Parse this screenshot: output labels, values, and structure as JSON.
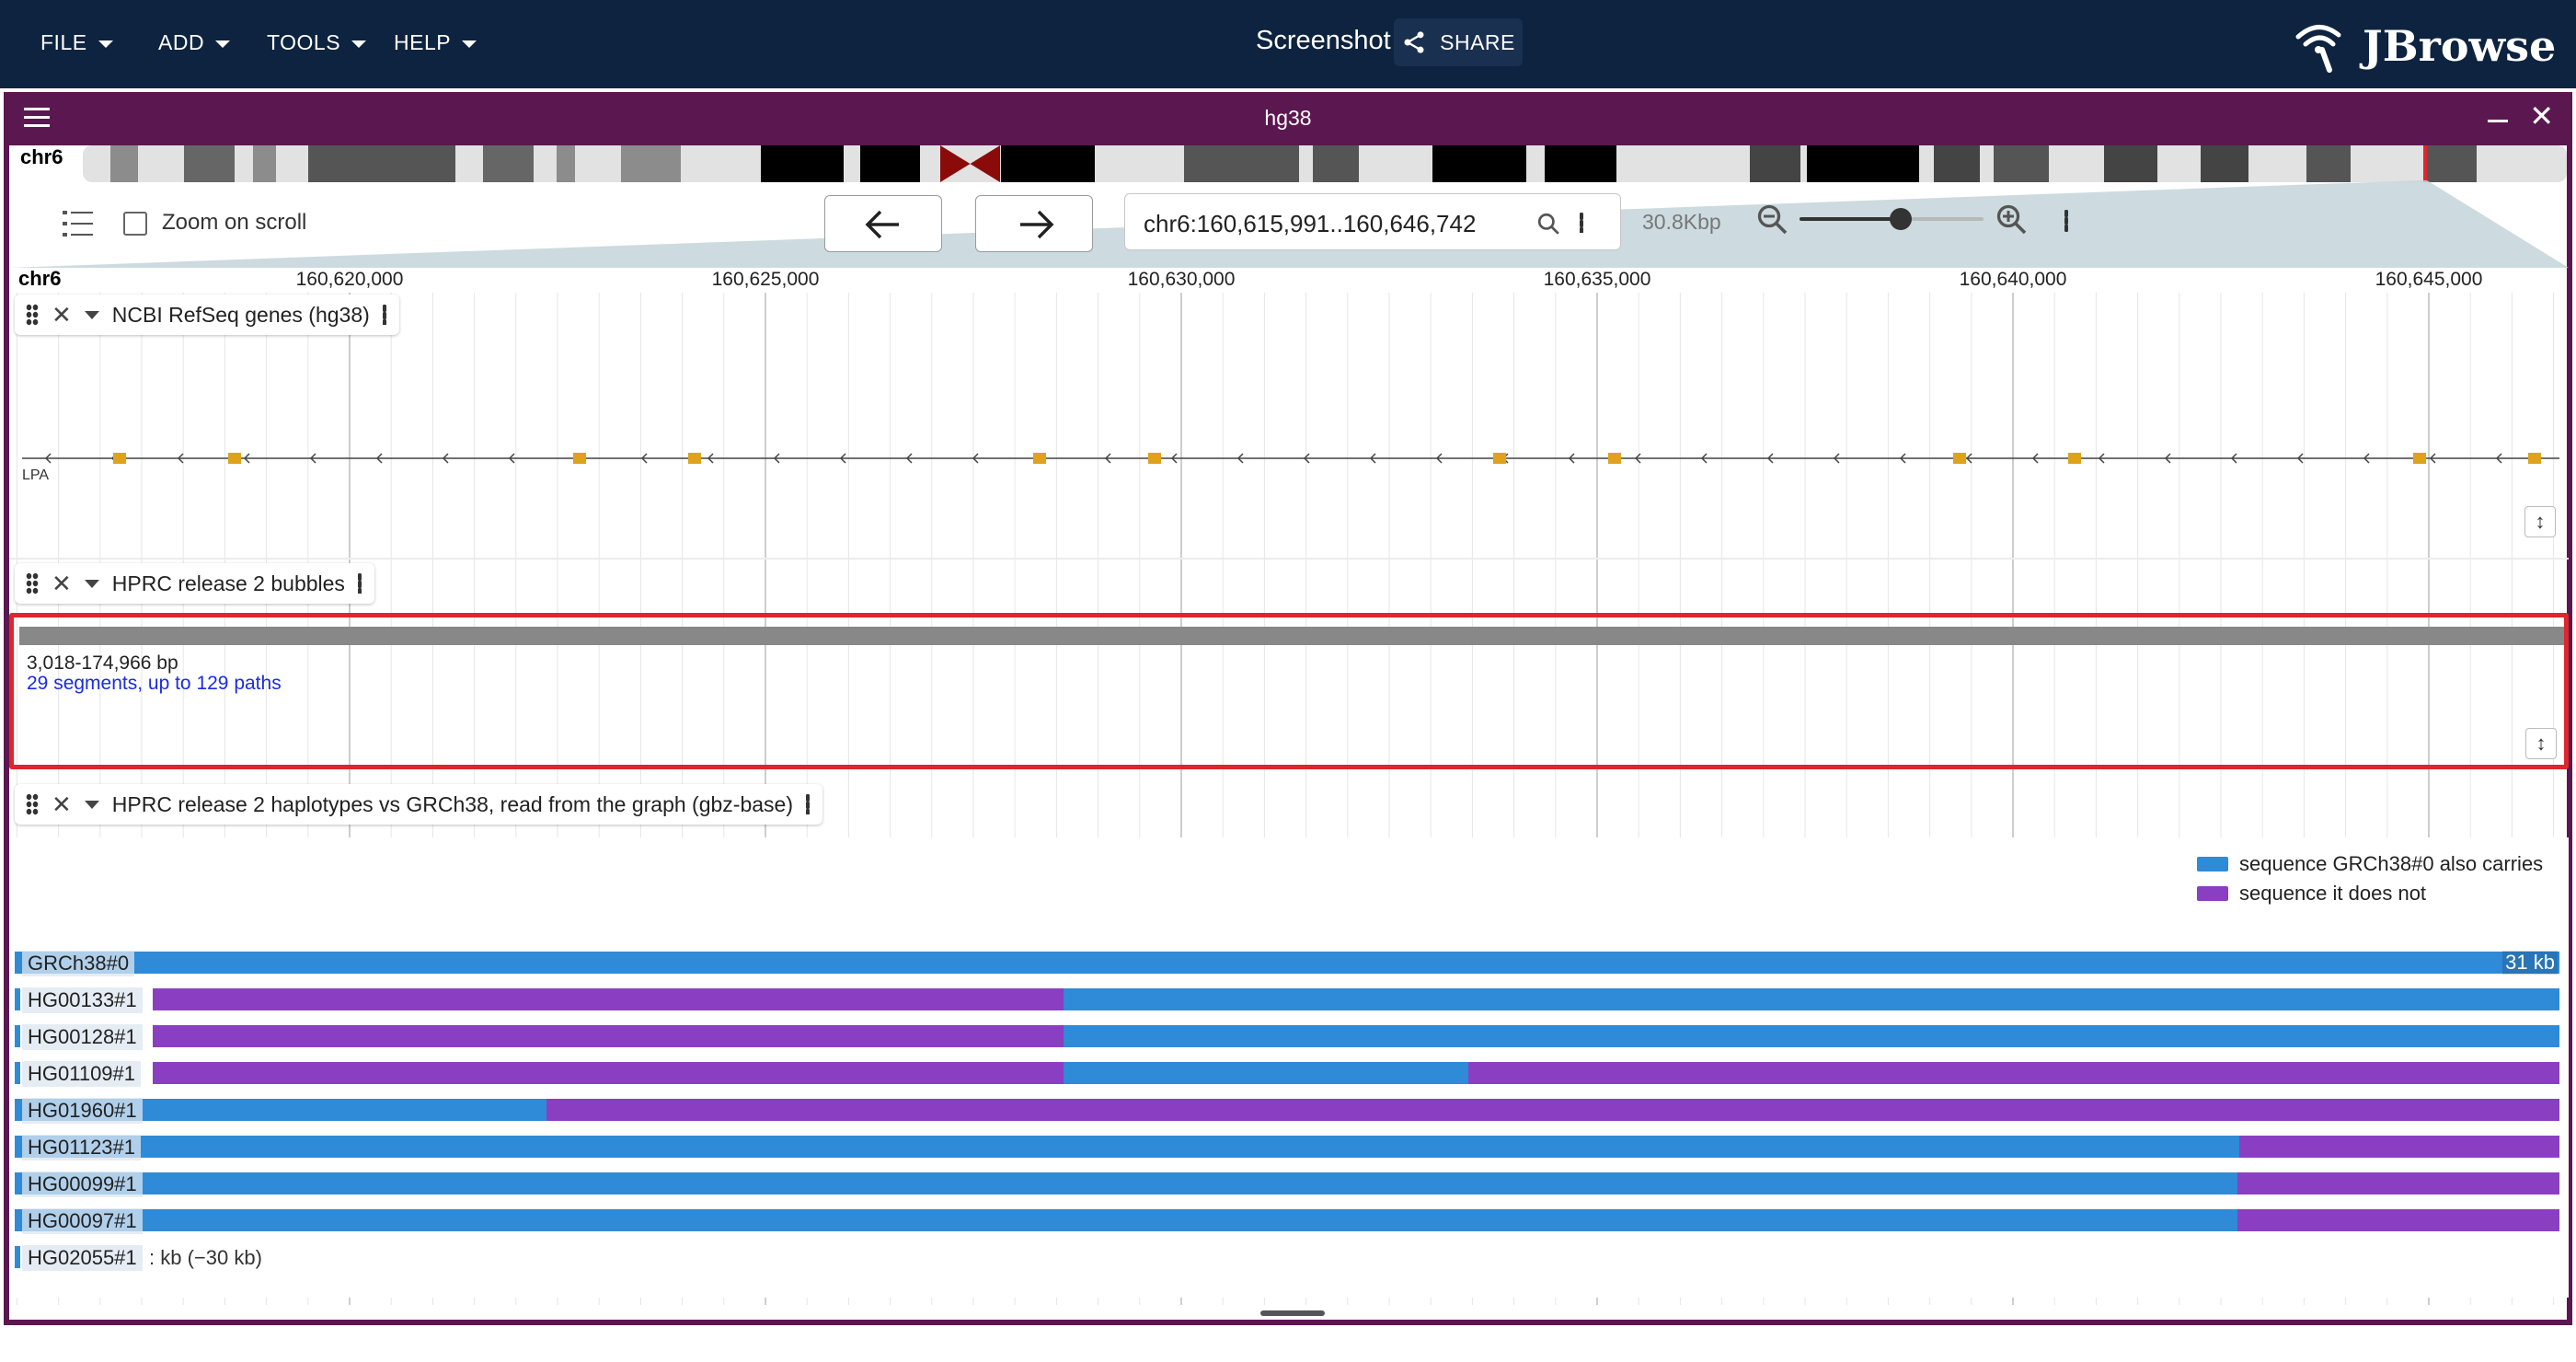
{
  "appbar": {
    "menus": [
      {
        "label": "FILE"
      },
      {
        "label": "ADD"
      },
      {
        "label": "TOOLS"
      },
      {
        "label": "HELP"
      }
    ],
    "session_title": "Screenshot",
    "share_label": "SHARE",
    "logo_text": "JBrowse"
  },
  "view": {
    "title": "hg38",
    "chromosome": "chr6",
    "zoom_on_scroll_label": "Zoom on scroll",
    "zoom_on_scroll_checked": false,
    "locstring": "chr6:160,615,991..160,646,742",
    "bp_per_view": "30.8Kbp",
    "zoom_level": 0.55,
    "ruler_chr": "chr6",
    "ruler_ticks": [
      "160,620,000",
      "160,625,000",
      "160,630,000",
      "160,635,000",
      "160,640,000",
      "160,645,000"
    ]
  },
  "tracks": {
    "genes": {
      "name": "NCBI RefSeq genes (hg38)",
      "gene_label": "LPA"
    },
    "bubbles": {
      "name": "HPRC release 2 bubbles",
      "range_text": "3,018-174,966 bp",
      "summary_text": "29 segments, up to 129 paths"
    },
    "haplotypes": {
      "name": "HPRC release 2 haplotypes vs GRCh38, read from the graph (gbz-base)",
      "legend": [
        {
          "label": "sequence GRCh38#0 also carries",
          "color": "#2f8ad8"
        },
        {
          "label": "sequence it does not",
          "color": "#8a3fc2"
        }
      ],
      "rows": [
        {
          "label": "GRCh38#0",
          "badge": "31 kb"
        },
        {
          "label": "HG00133#1"
        },
        {
          "label": "HG00128#1"
        },
        {
          "label": "HG01109#1"
        },
        {
          "label": "HG01960#1"
        },
        {
          "label": "HG01123#1"
        },
        {
          "label": "HG00099#1"
        },
        {
          "label": "HG00097#1"
        },
        {
          "label": "HG02055#1",
          "note": ": kb (−30 kb)"
        }
      ]
    }
  },
  "colors": {
    "appbar": "#0d233f",
    "view_header": "#5b1750",
    "carries": "#2f8ad8",
    "does_not": "#8a3fc2",
    "highlight": "#e0262c",
    "gene_exon": "#e0a21a"
  }
}
